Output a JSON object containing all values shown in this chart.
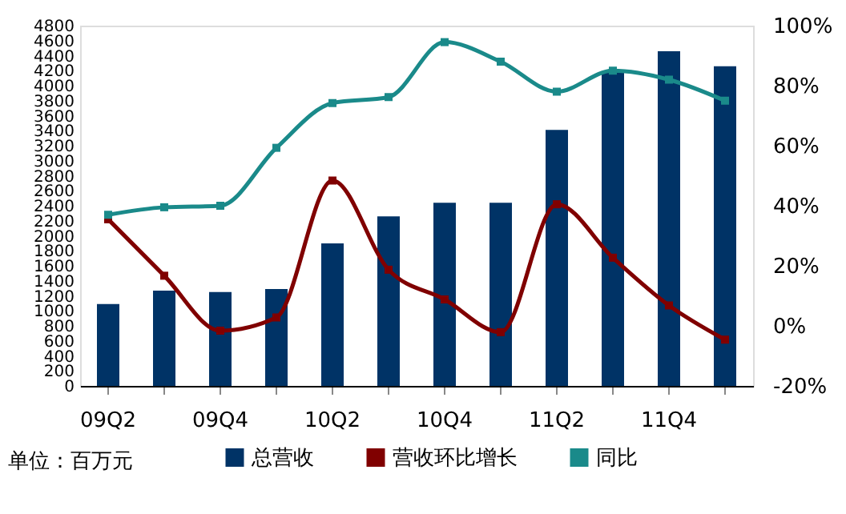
{
  "chart_data": {
    "type": "bar",
    "categories": [
      "09Q2",
      null,
      "09Q4",
      null,
      "10Q2",
      null,
      "10Q4",
      null,
      "11Q2",
      null,
      "11Q4",
      null
    ],
    "series": [
      {
        "name": "总营收",
        "color": "#003366",
        "values": [
          1090,
          1270,
          1250,
          1290,
          1900,
          2260,
          2440,
          2440,
          3410,
          4180,
          4460,
          4260
        ]
      },
      {
        "name": "营收环比增长",
        "type": "line",
        "axis": "y2",
        "color": "#800000",
        "values": [
          35.5,
          16.7,
          -1.6,
          2.8,
          48.4,
          18.7,
          8.8,
          -2.1,
          40.5,
          22.7,
          6.8,
          -4.6
        ]
      },
      {
        "name": "同比",
        "type": "line",
        "axis": "y2",
        "color": "#1a8a8a",
        "values": [
          37,
          39.5,
          40,
          59.3,
          74.2,
          76.2,
          94.5,
          88,
          78,
          85,
          82,
          75
        ]
      }
    ],
    "ylim": [
      0,
      4800
    ],
    "yticks": [
      0,
      200,
      400,
      600,
      800,
      1000,
      1200,
      1400,
      1600,
      1800,
      2000,
      2200,
      2400,
      2600,
      2800,
      3000,
      3200,
      3400,
      3600,
      3800,
      4000,
      4200,
      4400,
      4600,
      4800
    ],
    "y2lim": [
      -20,
      100
    ],
    "y2ticks": [
      {
        "value": -20,
        "label": "-20%"
      },
      {
        "value": 0,
        "label": "0%"
      },
      {
        "value": 20,
        "label": "20%"
      },
      {
        "value": 40,
        "label": "40%"
      },
      {
        "value": 60,
        "label": "60%"
      },
      {
        "value": 80,
        "label": "80%"
      },
      {
        "value": 100,
        "label": "100%"
      }
    ],
    "annotations": [
      "单位：百万元"
    ],
    "legend": "bottom",
    "grid": false,
    "marker": "square",
    "line_style": "solid"
  }
}
